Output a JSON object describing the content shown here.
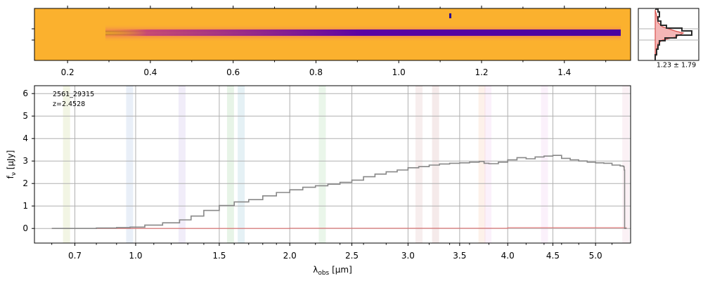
{
  "chart_data": [
    {
      "id": "spectrum_2d",
      "type": "heatmap",
      "colormap": "plasma",
      "xlabel": "",
      "xlim": [
        0.12,
        1.56
      ],
      "x_ticks": [
        0.2,
        0.4,
        0.6,
        0.8,
        1.0,
        1.2,
        1.4
      ],
      "x_tick_labels": [
        "0.2",
        "0.4",
        "0.6",
        "0.8",
        "1.0",
        "1.2",
        "1.4"
      ],
      "x_minor_ticks": [
        0.3,
        0.5,
        0.7,
        0.9,
        1.1,
        1.3,
        1.5
      ],
      "trace_x_range": [
        0.25,
        1.53
      ]
    },
    {
      "id": "profile",
      "type": "line",
      "annotation": "1.23 ± 1.79",
      "series": [
        {
          "name": "profile",
          "color": "#333333"
        },
        {
          "name": "model",
          "color": "#d9534f"
        }
      ]
    },
    {
      "id": "spectrum_1d",
      "type": "line",
      "title": "",
      "label_id": "2561_29315",
      "label_z": "z=2.4528",
      "xlabel": "λobs [μm]",
      "xlabel_main": "λ",
      "xlabel_sub": "obs",
      "xlabel_unit": " [μm]",
      "ylabel": "fν [μJy]",
      "ylabel_main": "f",
      "ylabel_sub": "ν",
      "ylabel_unit": " [μJy]",
      "ylim": [
        -0.65,
        6.35
      ],
      "y_ticks": [
        0,
        1,
        2,
        3,
        4,
        5,
        6
      ],
      "y_tick_labels": [
        "0",
        "1",
        "2",
        "3",
        "4",
        "5",
        "6"
      ],
      "x_ticks": [
        0.7,
        1.0,
        1.5,
        2.0,
        2.5,
        3.0,
        3.5,
        4.0,
        4.5,
        5.0
      ],
      "x_tick_labels": [
        "0.7",
        "1.0",
        "1.5",
        "2.0",
        "2.5",
        "3.0",
        "3.5",
        "4.0",
        "4.5",
        "5.0"
      ],
      "x_minor_ticks": [
        0.6,
        0.8,
        0.9,
        1.1,
        1.2,
        1.3,
        1.4,
        1.6,
        1.7,
        1.8,
        1.9,
        2.2,
        2.4,
        2.6,
        2.8,
        3.2,
        3.4,
        3.6,
        3.8,
        4.2,
        4.4,
        4.6,
        4.8,
        5.2
      ],
      "emission_lines": [
        {
          "um": 0.663,
          "color": "#b5c76a"
        },
        {
          "um": 0.968,
          "color": "#87a9d6"
        },
        {
          "um": 1.265,
          "color": "#b39ddb"
        },
        {
          "um": 1.575,
          "color": "#7cc27c"
        },
        {
          "um": 1.648,
          "color": "#6fb3c8"
        },
        {
          "um": 2.255,
          "color": "#8ccf8c"
        },
        {
          "um": 3.103,
          "color": "#d4a0a0"
        },
        {
          "um": 3.262,
          "color": "#c98b8b"
        },
        {
          "um": 3.728,
          "color": "#f2b38c"
        },
        {
          "um": 3.79,
          "color": "#e7b3e7"
        },
        {
          "um": 4.405,
          "color": "#e7b3e7"
        },
        {
          "um": 5.37,
          "color": "#e7b3c7"
        }
      ],
      "series": [
        {
          "name": "flux",
          "color": "#888888",
          "points": [
            [
              0.6,
              0.0
            ],
            [
              0.7,
              0.0
            ],
            [
              0.8,
              0.02
            ],
            [
              0.9,
              0.04
            ],
            [
              0.97,
              0.06
            ],
            [
              1.05,
              0.15
            ],
            [
              1.15,
              0.25
            ],
            [
              1.25,
              0.38
            ],
            [
              1.32,
              0.55
            ],
            [
              1.4,
              0.8
            ],
            [
              1.5,
              1.02
            ],
            [
              1.6,
              1.18
            ],
            [
              1.7,
              1.28
            ],
            [
              1.8,
              1.45
            ],
            [
              1.9,
              1.6
            ],
            [
              2.0,
              1.72
            ],
            [
              2.1,
              1.83
            ],
            [
              2.2,
              1.9
            ],
            [
              2.3,
              1.97
            ],
            [
              2.4,
              2.05
            ],
            [
              2.5,
              2.15
            ],
            [
              2.6,
              2.3
            ],
            [
              2.7,
              2.42
            ],
            [
              2.8,
              2.52
            ],
            [
              2.9,
              2.6
            ],
            [
              3.0,
              2.7
            ],
            [
              3.1,
              2.75
            ],
            [
              3.2,
              2.82
            ],
            [
              3.3,
              2.87
            ],
            [
              3.4,
              2.9
            ],
            [
              3.5,
              2.92
            ],
            [
              3.6,
              2.95
            ],
            [
              3.7,
              2.98
            ],
            [
              3.75,
              2.9
            ],
            [
              3.8,
              2.88
            ],
            [
              3.9,
              2.95
            ],
            [
              4.0,
              3.05
            ],
            [
              4.1,
              3.15
            ],
            [
              4.2,
              3.1
            ],
            [
              4.3,
              3.18
            ],
            [
              4.4,
              3.22
            ],
            [
              4.5,
              3.25
            ],
            [
              4.6,
              3.12
            ],
            [
              4.7,
              3.05
            ],
            [
              4.8,
              3.0
            ],
            [
              4.9,
              2.95
            ],
            [
              5.0,
              2.92
            ],
            [
              5.1,
              2.9
            ],
            [
              5.2,
              2.82
            ],
            [
              5.3,
              2.78
            ],
            [
              5.34,
              2.75
            ],
            [
              5.35,
              2.6
            ],
            [
              5.355,
              0.0
            ],
            [
              5.38,
              0.0
            ]
          ]
        },
        {
          "name": "error",
          "color": "#e07070",
          "points": [
            [
              0.6,
              0.0
            ],
            [
              2.0,
              0.01
            ],
            [
              4.0,
              0.03
            ],
            [
              5.0,
              0.03
            ],
            [
              5.38,
              0.03
            ]
          ]
        }
      ]
    }
  ]
}
